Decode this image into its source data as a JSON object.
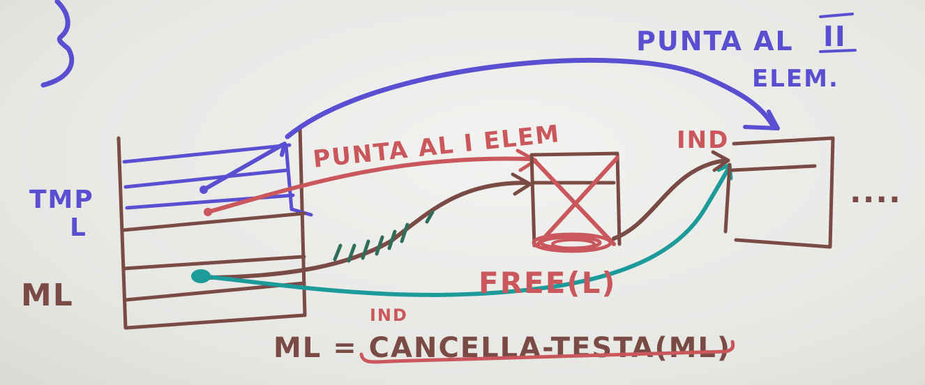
{
  "labels": {
    "punta_al_ii_line1": "PUNTA AL",
    "punta_al_ii_roman": "II",
    "punta_al_ii_line2": "ELEM.",
    "punta_al_i": "PUNTA AL I ELEM",
    "ind_top": "IND",
    "tmp": "TMP",
    "l": "L",
    "ml": "ML",
    "free": "FREE(L)",
    "ind_small": "IND",
    "assignment": "ML = CANCELLA-TESTA(ML)",
    "ellipsis": "...."
  },
  "colors": {
    "blue": "#5a4fd0",
    "red": "#c9575c",
    "brown": "#7a4a44",
    "teal": "#1d9a9a",
    "dark_green": "#2f6e5a"
  }
}
